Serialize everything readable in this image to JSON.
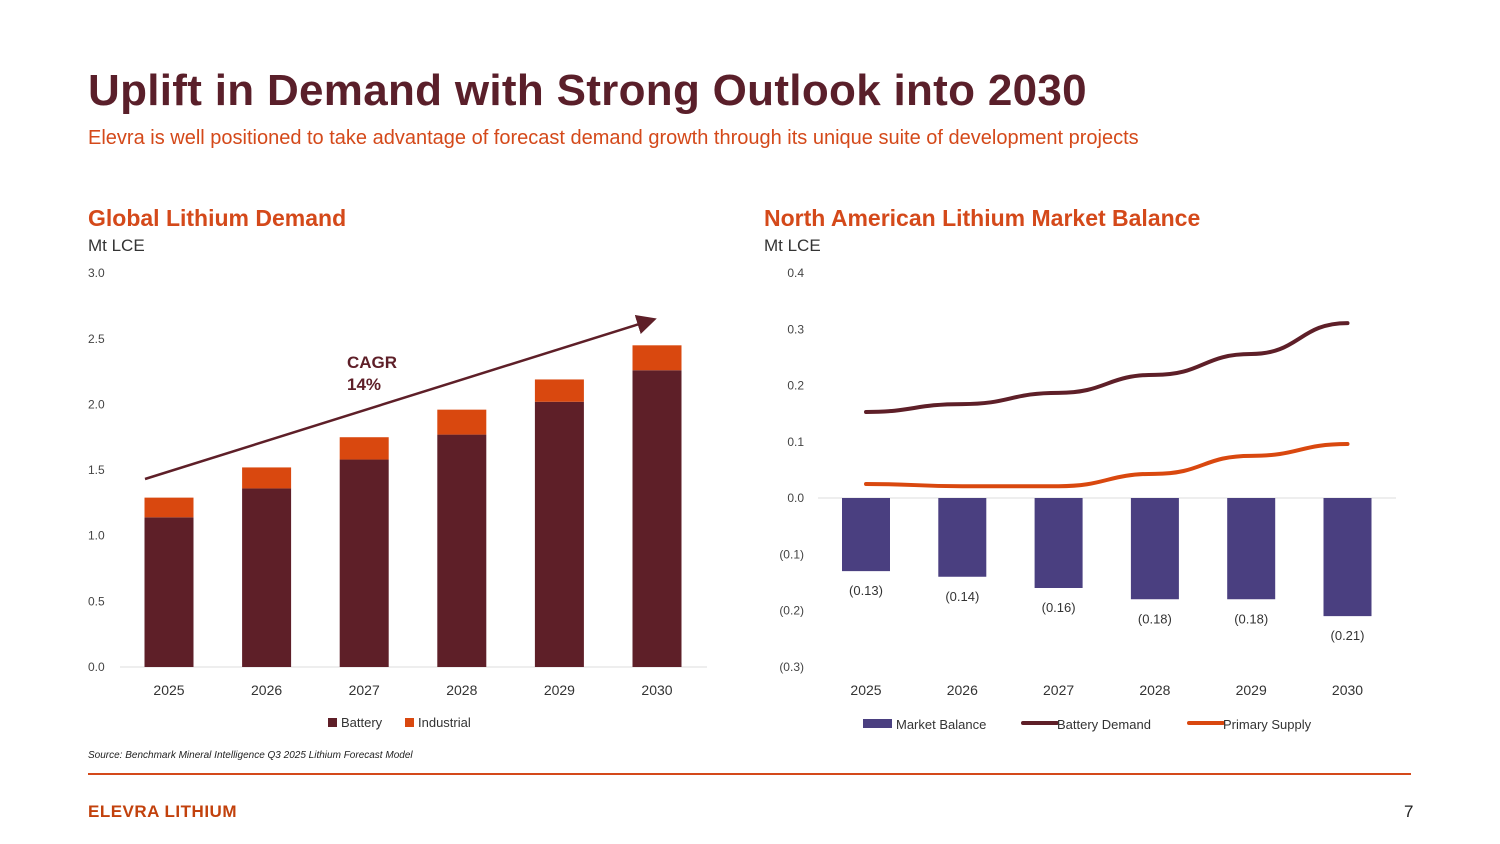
{
  "header": {
    "title": "Uplift in Demand with Strong Outlook into 2030",
    "subtitle": "Elevra is well positioned to take advantage of forecast demand growth through its unique suite of development projects"
  },
  "colors": {
    "battery": "#5e1f28",
    "industrial": "#d9480f",
    "market_balance": "#4a3f80",
    "battery_demand": "#5e1f28",
    "primary_supply": "#d9480f"
  },
  "chart_data": [
    {
      "type": "bar",
      "stacked": true,
      "title": "Global Lithium Demand",
      "ylabel": "Mt LCE",
      "categories": [
        "2025",
        "2026",
        "2027",
        "2028",
        "2029",
        "2030"
      ],
      "ylim": [
        0,
        3.0
      ],
      "yticks": [
        "0.0",
        "0.5",
        "1.0",
        "1.5",
        "2.0",
        "2.5",
        "3.0"
      ],
      "series": [
        {
          "name": "Battery",
          "values": [
            1.14,
            1.36,
            1.58,
            1.77,
            2.02,
            2.26
          ]
        },
        {
          "name": "Industrial",
          "values": [
            0.15,
            0.16,
            0.17,
            0.19,
            0.17,
            0.19
          ]
        }
      ],
      "annotation": {
        "line1": "CAGR",
        "line2": "14%"
      },
      "legend": "bottom",
      "grid": false
    },
    {
      "type": "bar+line",
      "title": "North American Lithium Market Balance",
      "ylabel": "Mt LCE",
      "categories": [
        "2025",
        "2026",
        "2027",
        "2028",
        "2029",
        "2030"
      ],
      "ylim": [
        -0.3,
        0.4
      ],
      "yticks": [
        "(0.3)",
        "(0.2)",
        "(0.1)",
        "0.0",
        "0.1",
        "0.2",
        "0.3",
        "0.4"
      ],
      "series": [
        {
          "name": "Market Balance",
          "type": "bar",
          "values": [
            -0.13,
            -0.14,
            -0.16,
            -0.18,
            -0.18,
            -0.21
          ],
          "labels": [
            "(0.13)",
            "(0.14)",
            "(0.16)",
            "(0.18)",
            "(0.18)",
            "(0.21)"
          ]
        },
        {
          "name": "Battery Demand",
          "type": "line",
          "values": [
            0.153,
            0.167,
            0.187,
            0.219,
            0.256,
            0.311
          ]
        },
        {
          "name": "Primary Supply",
          "type": "line",
          "values": [
            0.025,
            0.021,
            0.021,
            0.043,
            0.075,
            0.096
          ]
        }
      ],
      "legend": "bottom",
      "grid": false
    }
  ],
  "footer": {
    "source": "Source: Benchmark Mineral Intelligence Q3 2025 Lithium Forecast Model",
    "brand": "ELEVRA LITHIUM",
    "page": "7"
  }
}
